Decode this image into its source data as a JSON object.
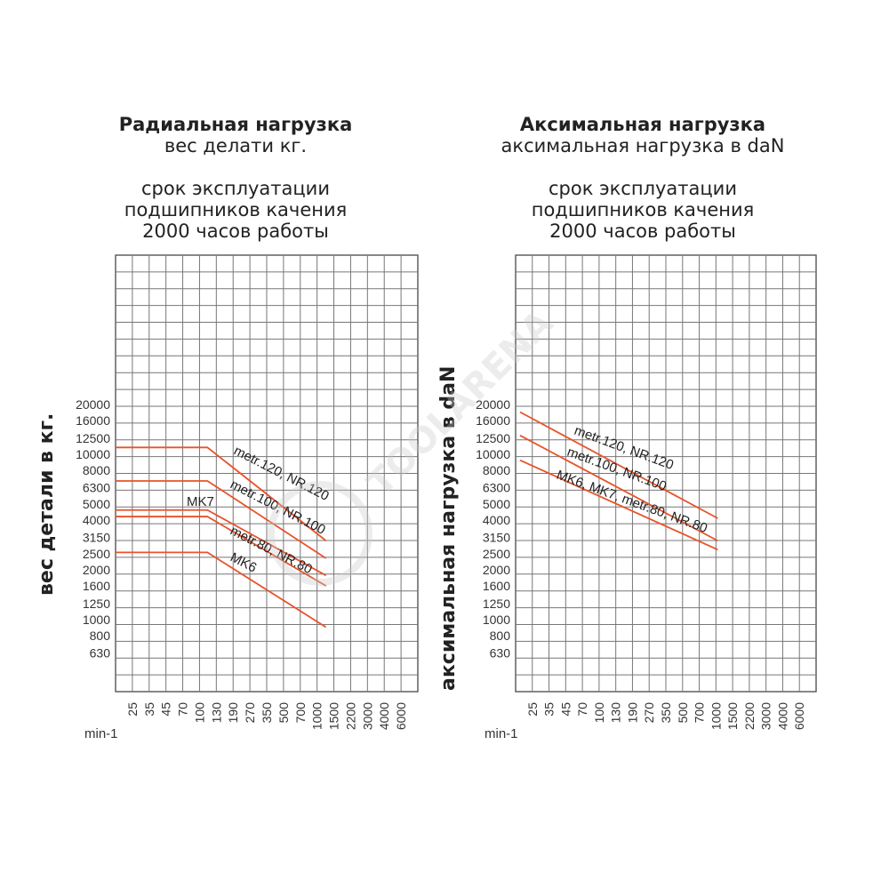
{
  "chart_data": [
    {
      "type": "line",
      "title": "Радиальная нагрузка",
      "subtitle_lines": [
        "вес делати кг.",
        "",
        "срок эксплуатации",
        "подшипников качения",
        "2000 часов работы"
      ],
      "ylabel": "вес детали в кг.",
      "xlabel": "min-1",
      "x_ticks": [
        "25",
        "35",
        "45",
        "70",
        "100",
        "130",
        "190",
        "270",
        "350",
        "500",
        "700",
        "1000",
        "1500",
        "2200",
        "3000",
        "4000",
        "6000"
      ],
      "y_ticks": [
        "20000",
        "16000",
        "12500",
        "10000",
        "8000",
        "6300",
        "5000",
        "4000",
        "3150",
        "2500",
        "2000",
        "1600",
        "1250",
        "1000",
        "800",
        "630"
      ],
      "series": [
        {
          "name": "metr.120, NR.120",
          "x": [
            "25",
            "130",
            "1000"
          ],
          "y": [
            11000,
            11000,
            3000
          ]
        },
        {
          "name": "metr.100, NR.100",
          "x": [
            "25",
            "130",
            "1000"
          ],
          "y": [
            6900,
            6900,
            2350
          ]
        },
        {
          "name": "MK7",
          "x": [
            "25",
            "130",
            "1000"
          ],
          "y": [
            4600,
            4600,
            1850
          ]
        },
        {
          "name": "metr.80, NR.80",
          "x": [
            "25",
            "130",
            "1000"
          ],
          "y": [
            4200,
            4200,
            1600
          ]
        },
        {
          "name": "MK6",
          "x": [
            "25",
            "130",
            "1000"
          ],
          "y": [
            2550,
            2550,
            900
          ]
        }
      ],
      "line_color": "#e8532a"
    },
    {
      "type": "line",
      "title": "Аксимальная нагрузка",
      "subtitle_lines": [
        "аксимальная нагрузка в daN",
        "",
        "срок эксплуатации",
        "подшипников качения",
        "2000 часов работы"
      ],
      "ylabel": "аксимальная нагрузка в daN",
      "xlabel": "min-1",
      "x_ticks": [
        "25",
        "35",
        "45",
        "70",
        "100",
        "130",
        "190",
        "270",
        "350",
        "500",
        "700",
        "1000",
        "1500",
        "2200",
        "3000",
        "4000",
        "6000"
      ],
      "y_ticks": [
        "20000",
        "16000",
        "12500",
        "10000",
        "8000",
        "6300",
        "5000",
        "4000",
        "3150",
        "2500",
        "2000",
        "1600",
        "1250",
        "1000",
        "800",
        "630"
      ],
      "series": [
        {
          "name": "metr.120, NR.120",
          "x": [
            "25",
            "1000"
          ],
          "y": [
            18000,
            4100
          ]
        },
        {
          "name": "metr.100, NR.100",
          "x": [
            "25",
            "1000"
          ],
          "y": [
            13000,
            3000
          ]
        },
        {
          "name": "MK6, MK7, metr.80, NR.80",
          "x": [
            "25",
            "1000"
          ],
          "y": [
            9200,
            2650
          ]
        }
      ],
      "line_color": "#e8532a"
    }
  ],
  "watermark": "TOOLARENA"
}
